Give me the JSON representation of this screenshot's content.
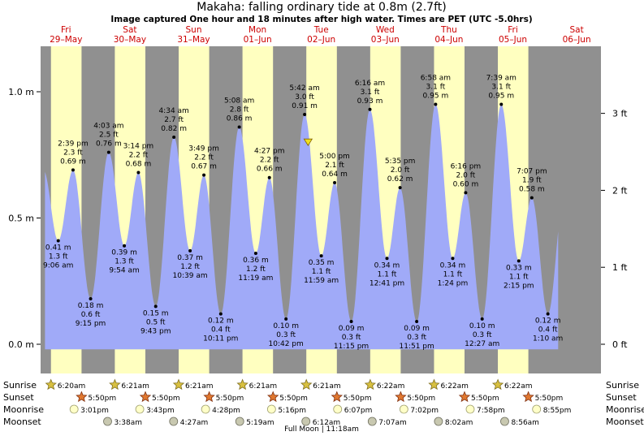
{
  "header": {
    "title": "Makaha: falling  ordinary tide at 0.8m (2.7ft)",
    "subtitle": "Image captured One hour and 18 minutes after high water. Times are PET (UTC -5.0hrs)"
  },
  "colors": {
    "night": "#909090",
    "day": "#ffffc0",
    "tide_fill": "#a0aaf8",
    "day_label": "#cc0000",
    "now_marker": "#f0e020"
  },
  "chart_data": {
    "type": "area",
    "y_left_label_unit": "m",
    "y_right_label_unit": "ft",
    "ylim_m": [
      -0.03,
      1.17
    ],
    "y_left_ticks": [
      "0.0 m",
      "0.5 m",
      "1.0 m"
    ],
    "y_left_tick_values": [
      0.0,
      0.5,
      1.0
    ],
    "y_right_ticks": [
      "0 ft",
      "1 ft",
      "2 ft",
      "3 ft"
    ],
    "y_right_tick_values_m": [
      0.0,
      0.3048,
      0.6096,
      0.9144
    ],
    "days": [
      {
        "dow": "Fri",
        "date": "29–May",
        "day_index": 0
      },
      {
        "dow": "Sat",
        "date": "30–May",
        "day_index": 1
      },
      {
        "dow": "Sun",
        "date": "31–May",
        "day_index": 2
      },
      {
        "dow": "Mon",
        "date": "01–Jun",
        "day_index": 3
      },
      {
        "dow": "Tue",
        "date": "02–Jun",
        "day_index": 4
      },
      {
        "dow": "Wed",
        "date": "03–Jun",
        "day_index": 5
      },
      {
        "dow": "Thu",
        "date": "04–Jun",
        "day_index": 6
      },
      {
        "dow": "Fri",
        "date": "05–Jun",
        "day_index": 7
      },
      {
        "dow": "Sat",
        "date": "06–Jun",
        "day_index": 8
      }
    ],
    "tides": [
      {
        "kind": "low",
        "t": 0.378,
        "m": 0.41,
        "lines": [
          "0.41 m",
          "1.3 ft",
          "9:06 am"
        ]
      },
      {
        "kind": "high",
        "t": 0.61,
        "m": 0.69,
        "lines": [
          "2:39 pm",
          "2.3 ft",
          "0.69 m"
        ]
      },
      {
        "kind": "low",
        "t": 0.885,
        "m": 0.18,
        "lines": [
          "0.18 m",
          "0.6 ft",
          "9:15 pm"
        ]
      },
      {
        "kind": "high",
        "t": 1.169,
        "m": 0.76,
        "lines": [
          "4:03 am",
          "2.5 ft",
          "0.76 m"
        ]
      },
      {
        "kind": "low",
        "t": 1.413,
        "m": 0.39,
        "lines": [
          "0.39 m",
          "1.3 ft",
          "9:54 am"
        ]
      },
      {
        "kind": "high",
        "t": 1.634,
        "m": 0.68,
        "lines": [
          "3:14 pm",
          "2.2 ft",
          "0.68 m"
        ]
      },
      {
        "kind": "low",
        "t": 1.905,
        "m": 0.15,
        "lines": [
          "0.15 m",
          "0.5 ft",
          "9:43 pm"
        ]
      },
      {
        "kind": "high",
        "t": 2.19,
        "m": 0.82,
        "lines": [
          "4:34 am",
          "2.7 ft",
          "0.82 m"
        ]
      },
      {
        "kind": "low",
        "t": 2.444,
        "m": 0.37,
        "lines": [
          "0.37 m",
          "1.2 ft",
          "10:39 am"
        ]
      },
      {
        "kind": "high",
        "t": 2.66,
        "m": 0.67,
        "lines": [
          "3:49 pm",
          "2.2 ft",
          "0.67 m"
        ]
      },
      {
        "kind": "low",
        "t": 2.924,
        "m": 0.12,
        "lines": [
          "0.12 m",
          "0.4 ft",
          "10:11 pm"
        ]
      },
      {
        "kind": "high",
        "t": 3.214,
        "m": 0.86,
        "lines": [
          "5:08 am",
          "2.8 ft",
          "0.86 m"
        ]
      },
      {
        "kind": "low",
        "t": 3.472,
        "m": 0.36,
        "lines": [
          "0.36 m",
          "1.2 ft",
          "11:19 am"
        ]
      },
      {
        "kind": "high",
        "t": 3.686,
        "m": 0.66,
        "lines": [
          "4:27 pm",
          "2.2 ft",
          "0.66 m"
        ]
      },
      {
        "kind": "low",
        "t": 3.946,
        "m": 0.1,
        "lines": [
          "0.10 m",
          "0.3 ft",
          "10:42 pm"
        ]
      },
      {
        "kind": "high",
        "t": 4.238,
        "m": 0.91,
        "lines": [
          "5:42 am",
          "3.0 ft",
          "0.91 m"
        ]
      },
      {
        "kind": "low",
        "t": 4.499,
        "m": 0.35,
        "lines": [
          "0.35 m",
          "1.1 ft",
          "11:59 am"
        ]
      },
      {
        "kind": "high",
        "t": 4.708,
        "m": 0.64,
        "lines": [
          "5:00 pm",
          "2.1 ft",
          "0.64 m"
        ]
      },
      {
        "kind": "low",
        "t": 4.969,
        "m": 0.09,
        "lines": [
          "0.09 m",
          "0.3 ft",
          "11:15 pm"
        ]
      },
      {
        "kind": "high",
        "t": 5.261,
        "m": 0.93,
        "lines": [
          "6:16 am",
          "3.1 ft",
          "0.93 m"
        ]
      },
      {
        "kind": "low",
        "t": 5.528,
        "m": 0.34,
        "lines": [
          "0.34 m",
          "1.1 ft",
          "12:41 pm"
        ]
      },
      {
        "kind": "high",
        "t": 5.733,
        "m": 0.62,
        "lines": [
          "5:35 pm",
          "2.0 ft",
          "0.62 m"
        ]
      },
      {
        "kind": "low",
        "t": 5.994,
        "m": 0.09,
        "lines": [
          "0.09 m",
          "0.3 ft",
          "11:51 pm"
        ]
      },
      {
        "kind": "high",
        "t": 6.29,
        "m": 0.95,
        "lines": [
          "6:58 am",
          "3.1 ft",
          "0.95 m"
        ]
      },
      {
        "kind": "low",
        "t": 6.558,
        "m": 0.34,
        "lines": [
          "0.34 m",
          "1.1 ft",
          "1:24 pm"
        ]
      },
      {
        "kind": "high",
        "t": 6.761,
        "m": 0.6,
        "lines": [
          "6:16 pm",
          "2.0 ft",
          "0.60 m"
        ]
      },
      {
        "kind": "low",
        "t": 7.019,
        "m": 0.1,
        "lines": [
          "0.10 m",
          "0.3 ft",
          "12:27 am"
        ]
      },
      {
        "kind": "high",
        "t": 7.319,
        "m": 0.95,
        "lines": [
          "7:39 am",
          "3.1 ft",
          "0.95 m"
        ]
      },
      {
        "kind": "low",
        "t": 7.593,
        "m": 0.33,
        "lines": [
          "0.33 m",
          "1.1 ft",
          "2:15 pm"
        ]
      },
      {
        "kind": "high",
        "t": 7.797,
        "m": 0.58,
        "lines": [
          "7:07 pm",
          "1.9 ft",
          "0.58 m"
        ]
      },
      {
        "kind": "low",
        "t": 8.049,
        "m": 0.12,
        "lines": [
          "0.12 m",
          "0.4 ft",
          "1:10 am"
        ]
      }
    ],
    "curve_start_t": 0.17,
    "curve_end_t": 8.21,
    "now_t": 4.292,
    "now_m": 0.8
  },
  "astro": {
    "row_labels": [
      "Sunrise",
      "Sunset",
      "Moonrise",
      "Moonset"
    ],
    "sunrise": [
      {
        "day_index": 0,
        "label": "6:20am"
      },
      {
        "day_index": 1,
        "label": "6:21am"
      },
      {
        "day_index": 2,
        "label": "6:21am"
      },
      {
        "day_index": 3,
        "label": "6:21am"
      },
      {
        "day_index": 4,
        "label": "6:21am"
      },
      {
        "day_index": 5,
        "label": "6:22am"
      },
      {
        "day_index": 6,
        "label": "6:22am"
      },
      {
        "day_index": 7,
        "label": "6:22am"
      }
    ],
    "sunset": [
      {
        "day_index": 0,
        "label": "5:50pm"
      },
      {
        "day_index": 1,
        "label": "5:50pm"
      },
      {
        "day_index": 2,
        "label": "5:50pm"
      },
      {
        "day_index": 3,
        "label": "5:50pm"
      },
      {
        "day_index": 4,
        "label": "5:50pm"
      },
      {
        "day_index": 5,
        "label": "5:50pm"
      },
      {
        "day_index": 6,
        "label": "5:50pm"
      },
      {
        "day_index": 7,
        "label": "5:50pm"
      }
    ],
    "moonrise": [
      {
        "day_index": 0,
        "label": "3:01pm"
      },
      {
        "day_index": 1,
        "label": "3:43pm"
      },
      {
        "day_index": 2,
        "label": "4:28pm"
      },
      {
        "day_index": 3,
        "label": "5:16pm"
      },
      {
        "day_index": 4,
        "label": "6:07pm"
      },
      {
        "day_index": 5,
        "label": "7:02pm"
      },
      {
        "day_index": 6,
        "label": "7:58pm"
      },
      {
        "day_index": 7,
        "label": "8:55pm"
      }
    ],
    "moonset": [
      {
        "day_index": 1,
        "label": "3:38am"
      },
      {
        "day_index": 2,
        "label": "4:27am"
      },
      {
        "day_index": 3,
        "label": "5:19am"
      },
      {
        "day_index": 4,
        "label": "6:12am"
      },
      {
        "day_index": 5,
        "label": "7:07am"
      },
      {
        "day_index": 6,
        "label": "8:02am"
      },
      {
        "day_index": 7,
        "label": "8:56am"
      }
    ],
    "moon_phase_note": "Full Moon | 11:18am"
  }
}
